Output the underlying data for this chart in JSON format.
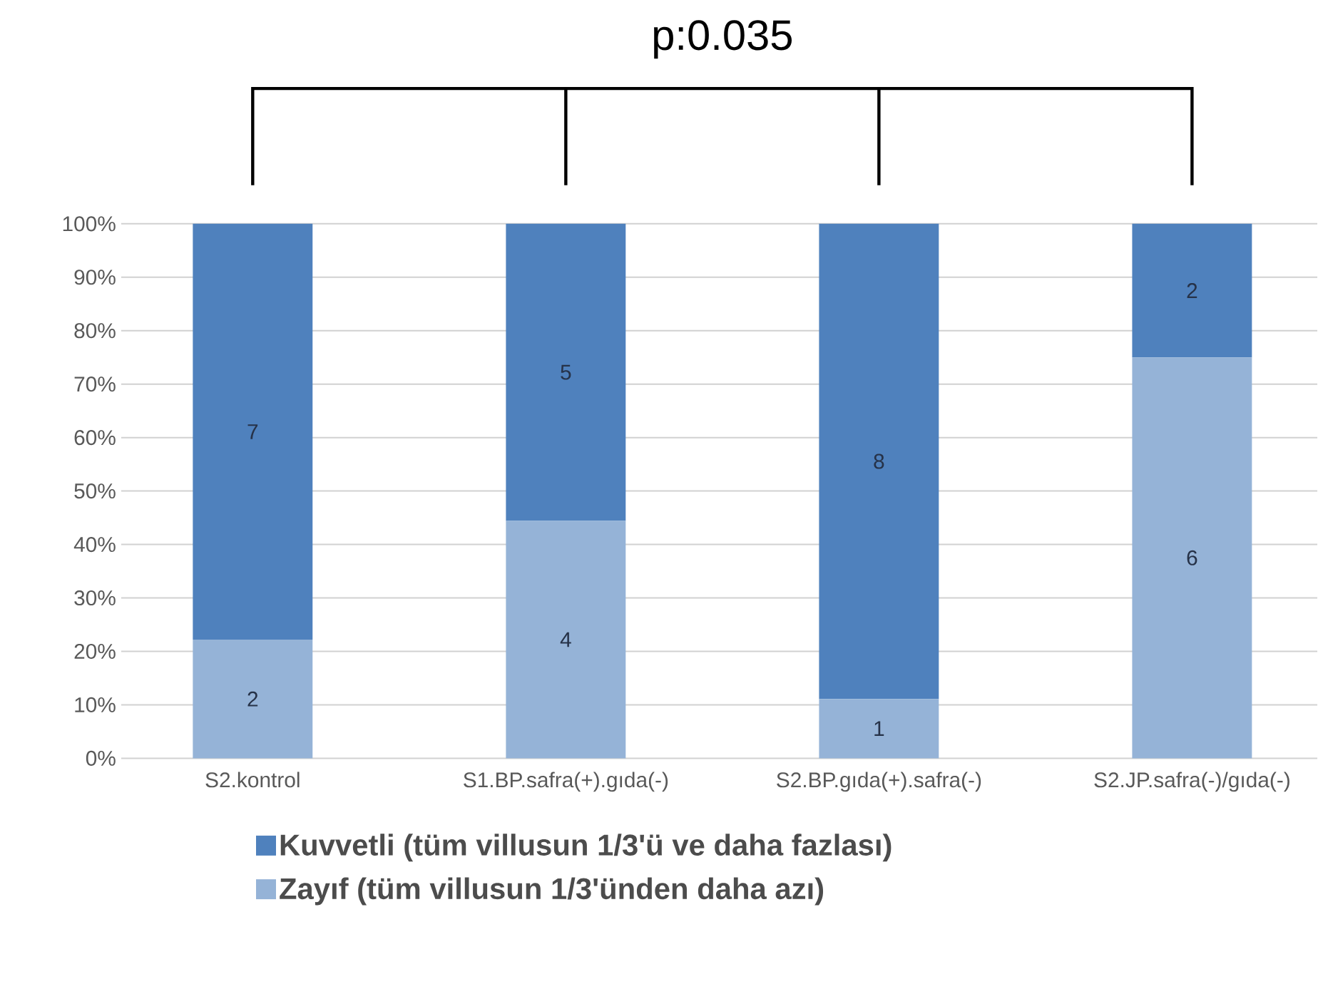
{
  "chart_data": {
    "type": "bar",
    "stacked": true,
    "categories": [
      "S2.kontrol",
      "S1.BP.safra(+).gıda(-)",
      "S2.BP.gıda(+).safra(-)",
      "S2.JP.safra(-)/gıda(-)"
    ],
    "series": [
      {
        "name": "Zayıf (tüm villusun 1/3'ünden daha azı)",
        "color": "#95b3d7",
        "values": [
          22.2,
          44.4,
          11.1,
          75
        ]
      },
      {
        "name": "Kuvvetli (tüm villusun 1/3'ü ve daha fazlası)",
        "color": "#4f81bd",
        "values": [
          77.8,
          55.6,
          88.9,
          25
        ]
      }
    ],
    "ylim": [
      0,
      100
    ],
    "yticks": [
      {
        "value": 0,
        "label": "0%"
      },
      {
        "value": 10,
        "label": "10%"
      },
      {
        "value": 20,
        "label": "20%"
      },
      {
        "value": 30,
        "label": "30%"
      },
      {
        "value": 40,
        "label": "40%"
      },
      {
        "value": 50,
        "label": "50%"
      },
      {
        "value": 60,
        "label": "60%"
      },
      {
        "value": 70,
        "label": "70%"
      },
      {
        "value": 80,
        "label": "80%"
      },
      {
        "value": 90,
        "label": "90%"
      },
      {
        "value": 100,
        "label": "100%"
      }
    ],
    "grid": "y",
    "legend": "bottom",
    "annotations": [
      "p:0.035",
      "2",
      "4",
      "1",
      "6",
      "7",
      "5",
      "8",
      "2"
    ]
  }
}
